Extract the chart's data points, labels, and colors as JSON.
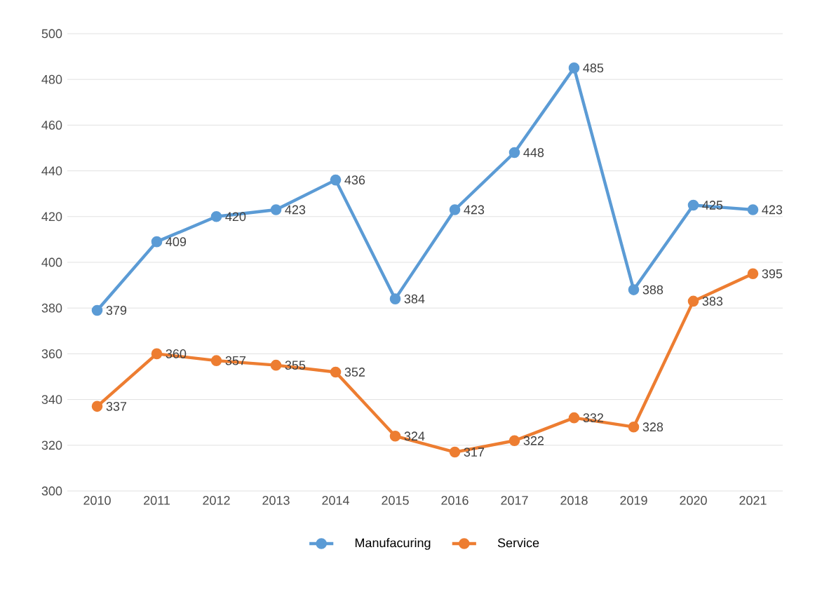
{
  "chart_data": {
    "type": "line",
    "categories": [
      "2010",
      "2011",
      "2012",
      "2013",
      "2014",
      "2015",
      "2016",
      "2017",
      "2018",
      "2019",
      "2020",
      "2021"
    ],
    "series": [
      {
        "name": "Manufacuring",
        "color": "#5b9bd5",
        "values": [
          379,
          409,
          420,
          423,
          436,
          384,
          423,
          448,
          485,
          388,
          425,
          423
        ]
      },
      {
        "name": "Service",
        "color": "#ed7d31",
        "values": [
          337,
          360,
          357,
          355,
          352,
          324,
          317,
          322,
          332,
          328,
          383,
          395
        ]
      }
    ],
    "ylim": [
      300,
      500
    ],
    "yticks": [
      300,
      320,
      340,
      360,
      380,
      400,
      420,
      440,
      460,
      480,
      500
    ],
    "grid": "y",
    "legend": "bottom",
    "marker": "circle",
    "line_style": "solid",
    "data_labels": true
  }
}
